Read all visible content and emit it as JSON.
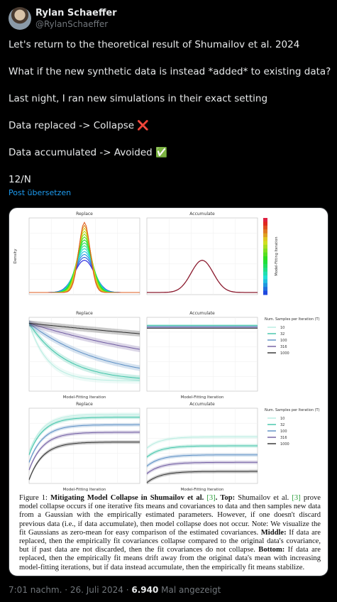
{
  "user": {
    "name": "Rylan Schaeffer",
    "handle": "@RylanSchaeffer"
  },
  "tweet": {
    "paragraphs": [
      "Let's return to the theoretical result of Shumailov et al. 2024",
      "What if the new synthetic data is instead *added* to existing data?",
      "Last night, I ran new simulations in their exact setting",
      "Data replaced -> Collapse ❌",
      "Data accumulated -> Avoided ✅",
      "12/N"
    ],
    "translate": "Post übersetzen"
  },
  "figure": {
    "rows": [
      {
        "titles": [
          "Replace",
          "Accumulate"
        ],
        "ylabel": "Density",
        "colorbar_label": "Model-Fitting Iteration"
      },
      {
        "titles": [
          "Replace",
          "Accumulate"
        ],
        "xlabel": "Model-Fitting Iteration"
      },
      {
        "titles": [
          "Replace",
          "Accumulate"
        ],
        "xlabel": "Model-Fitting Iteration"
      }
    ],
    "legend": {
      "title": "Num. Samples per Iteration (T)",
      "entries": [
        {
          "name": "10",
          "color": "#b6ece0"
        },
        {
          "name": "32",
          "color": "#3fc4a8"
        },
        {
          "name": "100",
          "color": "#5b8ec4"
        },
        {
          "name": "316",
          "color": "#6e5aa0"
        },
        {
          "name": "1000",
          "color": "#2e2e2e"
        }
      ]
    },
    "caption": [
      {
        "text": "Figure 1: ",
        "bold": false
      },
      {
        "text": "Mitigating Model Collapse in Shumailov et al. ",
        "bold": true
      },
      {
        "text": "[3]",
        "bold": false,
        "link": true
      },
      {
        "text": ". Top: ",
        "bold": true
      },
      {
        "text": "Shumailov et al. ",
        "bold": false
      },
      {
        "text": "[3]",
        "bold": false,
        "link": true
      },
      {
        "text": " prove model collapse occurs if one iterative fits means and covariances to data and then samples new data from a Gaussian with the empirically estimated parameters. However, if one doesn't discard previous data (i.e., if data accumulate), then model collapse does not occur. Note: We visualize the fit Gaussians as zero-mean for easy comparison of the estimated covariances. ",
        "bold": false
      },
      {
        "text": "Middle:",
        "bold": true
      },
      {
        "text": " If data are replaced, then the empirically fit covariances collapse compared to the original data's covariance, but if past data are not discarded, then the fit covariances do not collapse. ",
        "bold": false
      },
      {
        "text": "Bottom:",
        "bold": true
      },
      {
        "text": " If data are replaced, then the empirically fit means drift away from the original data's mean with increasing model-fitting iterations, but if data instead accumulate, then the empirically fit means stabilize.",
        "bold": false
      }
    ]
  },
  "footer": {
    "date_line": "7:01 nachm. · 26. Juli 2024 · ",
    "views": "6.940",
    "views_label": " Mal angezeigt"
  }
}
